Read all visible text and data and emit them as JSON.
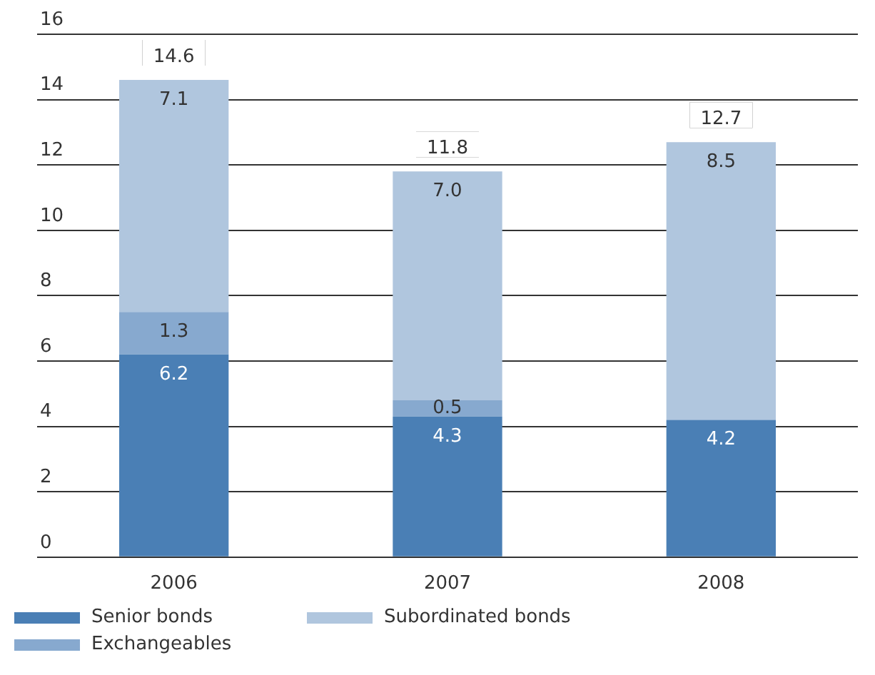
{
  "chart_data": {
    "type": "bar",
    "stacked": true,
    "categories": [
      "2006",
      "2007",
      "2008"
    ],
    "series": [
      {
        "name": "Senior bonds",
        "color": "#4a7fb5",
        "values": [
          6.2,
          4.3,
          4.2
        ],
        "value_labels": [
          "6.2",
          "4.3",
          "4.2"
        ]
      },
      {
        "name": "Exchangeables",
        "color": "#87a9cf",
        "values": [
          1.3,
          0.5,
          null
        ],
        "value_labels": [
          "1.3",
          "0.5",
          null
        ]
      },
      {
        "name": "Subordinated bonds",
        "color": "#b0c6de",
        "values": [
          7.1,
          7.0,
          8.5
        ],
        "value_labels": [
          "7.1",
          "7.0",
          "8.5"
        ]
      }
    ],
    "totals": [
      "14.6",
      "11.8",
      "12.7"
    ],
    "ylim": [
      0,
      16
    ],
    "yticks": [
      0,
      2,
      4,
      6,
      8,
      10,
      12,
      14,
      16
    ],
    "grid": "y",
    "legend": "bottom"
  }
}
